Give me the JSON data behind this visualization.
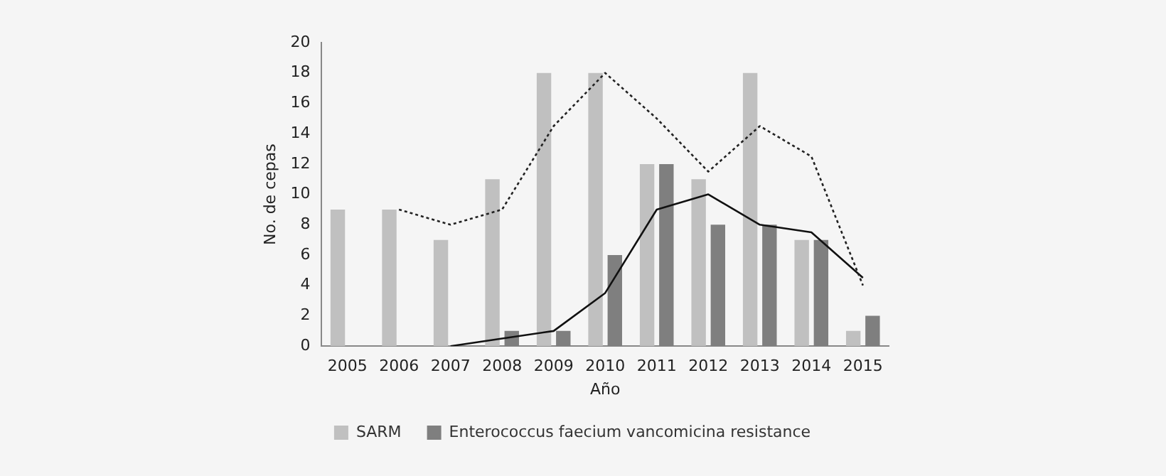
{
  "chart_data": {
    "type": "bar",
    "xlabel": "Año",
    "ylabel": "No. de cepas",
    "categories": [
      "2005",
      "2006",
      "2007",
      "2008",
      "2009",
      "2010",
      "2011",
      "2012",
      "2013",
      "2014",
      "2015"
    ],
    "series": [
      {
        "name": "SARM",
        "color": "#c0c0c0",
        "values": [
          9,
          9,
          7,
          11,
          18,
          18,
          12,
          11,
          18,
          7,
          1
        ]
      },
      {
        "name": "Enterococcus faecium vancomicina resistance",
        "color": "#7f7f7f",
        "values": [
          0,
          0,
          0,
          1,
          1,
          6,
          12,
          8,
          8,
          7,
          2
        ]
      },
      {
        "type": "line",
        "color": "#222222",
        "line_style": "dotted",
        "values": [
          null,
          9,
          8,
          9,
          14.5,
          18,
          15,
          11.5,
          14.5,
          12.5,
          4
        ]
      },
      {
        "type": "line",
        "color": "#111111",
        "line_style": "solid",
        "values": [
          null,
          null,
          0,
          0.5,
          1,
          3.5,
          9,
          10,
          8,
          7.5,
          4.5
        ]
      }
    ],
    "ylim": [
      0,
      20
    ],
    "yticks": [
      0,
      2,
      4,
      6,
      8,
      10,
      12,
      14,
      16,
      18,
      20
    ],
    "grid": false,
    "legend": "bottom",
    "marker": "none"
  }
}
